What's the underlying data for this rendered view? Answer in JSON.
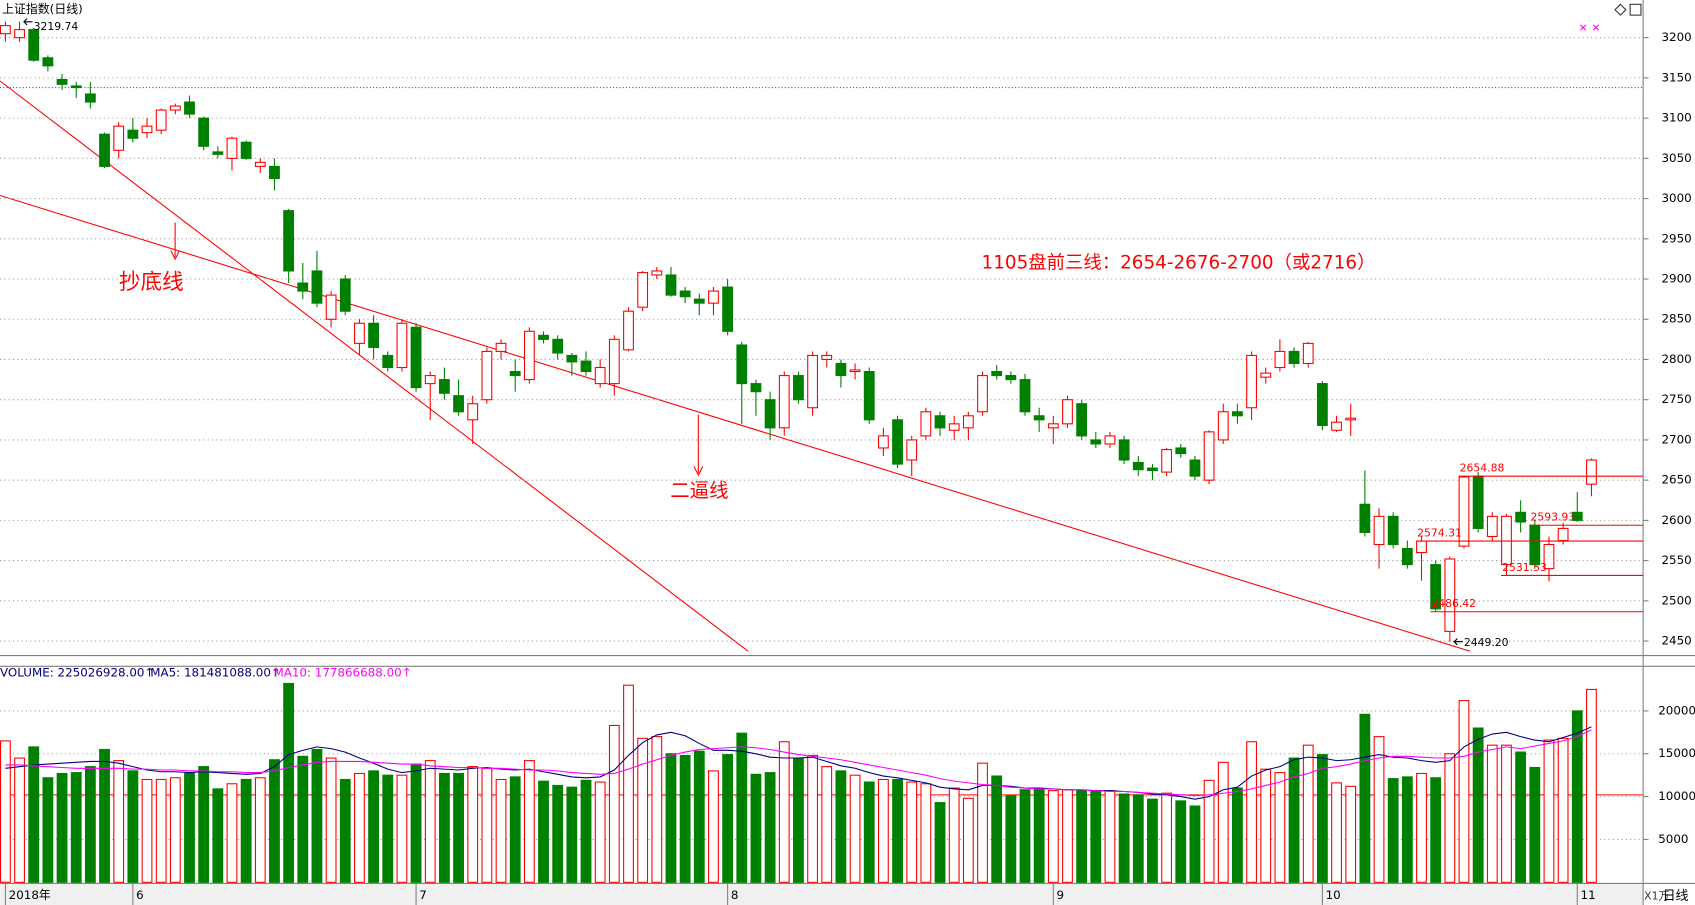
{
  "chart_data": [
    {
      "type": "candlestick",
      "title": "上证指数(日线)",
      "categories": [
        "2018年",
        null,
        null,
        null,
        null,
        null,
        null,
        null,
        null,
        "6",
        null,
        null,
        null,
        null,
        null,
        null,
        null,
        null,
        null,
        null,
        null,
        null,
        null,
        null,
        null,
        null,
        null,
        null,
        null,
        "7",
        null,
        null,
        null,
        null,
        null,
        null,
        null,
        null,
        null,
        null,
        null,
        null,
        null,
        null,
        null,
        null,
        null,
        null,
        null,
        null,
        null,
        "8",
        null,
        null,
        null,
        null,
        null,
        null,
        null,
        null,
        null,
        null,
        null,
        null,
        null,
        null,
        null,
        null,
        null,
        null,
        null,
        null,
        null,
        null,
        "9",
        null,
        null,
        null,
        null,
        null,
        null,
        null,
        null,
        null,
        null,
        null,
        null,
        null,
        null,
        null,
        null,
        null,
        null,
        "10",
        null,
        null,
        null,
        null,
        null,
        null,
        null,
        null,
        null,
        null,
        null,
        null,
        null,
        null,
        null,
        null,
        null,
        "11",
        null
      ],
      "open": [
        3205,
        3200,
        3210,
        3175,
        3148,
        3140,
        3130,
        3080,
        3060,
        3085,
        3082,
        3085,
        3110,
        3120,
        3100,
        3058,
        3050,
        3070,
        3040,
        3040,
        2985,
        2895,
        2910,
        2850,
        2900,
        2820,
        2845,
        2805,
        2790,
        2840,
        2770,
        2775,
        2755,
        2725,
        2750,
        2810,
        2785,
        2775,
        2830,
        2825,
        2805,
        2798,
        2770,
        2770,
        2812,
        2865,
        2905,
        2905,
        2885,
        2875,
        2870,
        2890,
        2818,
        2770,
        2750,
        2715,
        2780,
        2740,
        2800,
        2795,
        2785,
        2785,
        2690,
        2725,
        2675,
        2705,
        2730,
        2712,
        2715,
        2735,
        2785,
        2780,
        2775,
        2730,
        2715,
        2720,
        2745,
        2700,
        2695,
        2700,
        2672,
        2665,
        2660,
        2690,
        2675,
        2650,
        2700,
        2735,
        2740,
        2778,
        2790,
        2810,
        2795,
        2770,
        2712,
        2725,
        2620,
        2570,
        2605,
        2565,
        2560,
        2545,
        2462,
        2568,
        2655,
        2580,
        2545,
        2610,
        2593.93,
        2540,
        2575,
        2610,
        2645
      ],
      "high": [
        3220,
        3219.74,
        3212,
        3178,
        3155,
        3145,
        3145,
        3082,
        3095,
        3100,
        3100,
        3112,
        3118,
        3128,
        3102,
        3065,
        3077,
        3072,
        3050,
        3050,
        2987,
        2920,
        2935,
        2885,
        2905,
        2850,
        2855,
        2810,
        2850,
        2845,
        2785,
        2790,
        2775,
        2755,
        2815,
        2825,
        2800,
        2840,
        2835,
        2830,
        2808,
        2810,
        2800,
        2830,
        2865,
        2910,
        2915,
        2915,
        2890,
        2882,
        2890,
        2900,
        2822,
        2775,
        2760,
        2785,
        2785,
        2810,
        2810,
        2800,
        2795,
        2790,
        2715,
        2730,
        2705,
        2740,
        2735,
        2730,
        2735,
        2785,
        2793,
        2785,
        2782,
        2740,
        2730,
        2755,
        2750,
        2710,
        2710,
        2705,
        2680,
        2670,
        2690,
        2695,
        2680,
        2712,
        2745,
        2745,
        2810,
        2790,
        2825,
        2815,
        2822,
        2773,
        2730,
        2745,
        2662,
        2615,
        2610,
        2575,
        2580,
        2550,
        2555,
        2654.88,
        2660,
        2610,
        2608,
        2625,
        2600,
        2580,
        2597,
        2635,
        2677
      ],
      "low": [
        3195,
        3195,
        3170,
        3158,
        3135,
        3125,
        3112,
        3038,
        3050,
        3070,
        3075,
        3080,
        3105,
        3100,
        3060,
        3050,
        3035,
        3048,
        3032,
        3010,
        2895,
        2875,
        2865,
        2840,
        2855,
        2805,
        2800,
        2785,
        2785,
        2760,
        2725,
        2750,
        2730,
        2695,
        2745,
        2800,
        2760,
        2770,
        2820,
        2800,
        2780,
        2780,
        2765,
        2755,
        2810,
        2860,
        2900,
        2878,
        2870,
        2855,
        2855,
        2830,
        2720,
        2730,
        2700,
        2705,
        2745,
        2730,
        2790,
        2765,
        2775,
        2720,
        2680,
        2665,
        2655,
        2700,
        2705,
        2700,
        2700,
        2730,
        2775,
        2770,
        2730,
        2710,
        2695,
        2715,
        2700,
        2690,
        2690,
        2670,
        2655,
        2650,
        2655,
        2678,
        2650,
        2645,
        2695,
        2720,
        2725,
        2770,
        2785,
        2790,
        2790,
        2712,
        2710,
        2705,
        2580,
        2540,
        2565,
        2540,
        2525,
        2486.42,
        2449.2,
        2565,
        2585,
        2575,
        2531.53,
        2585,
        2540,
        2524,
        2570,
        2598,
        2630
      ],
      "close": [
        3215,
        3210,
        3172,
        3165,
        3142,
        3138,
        3120,
        3040,
        3090,
        3075,
        3090,
        3110,
        3115,
        3105,
        3065,
        3055,
        3075,
        3050,
        3045,
        3025,
        2910,
        2885,
        2870,
        2880,
        2860,
        2845,
        2815,
        2790,
        2845,
        2765,
        2780,
        2758,
        2735,
        2745,
        2810,
        2820,
        2780,
        2835,
        2825,
        2808,
        2797,
        2785,
        2790,
        2825,
        2860,
        2908,
        2910,
        2880,
        2878,
        2870,
        2885,
        2835,
        2770,
        2760,
        2715,
        2780,
        2750,
        2805,
        2805,
        2780,
        2787,
        2725,
        2705,
        2670,
        2700,
        2735,
        2715,
        2720,
        2730,
        2780,
        2780,
        2775,
        2735,
        2725,
        2720,
        2750,
        2705,
        2695,
        2705,
        2675,
        2663,
        2662,
        2688,
        2683,
        2655,
        2710,
        2735,
        2730,
        2805,
        2783,
        2810,
        2795,
        2820,
        2718,
        2722,
        2727,
        2585,
        2605,
        2570,
        2545,
        2574.31,
        2490,
        2552,
        2654,
        2590,
        2605,
        2605,
        2598,
        2545,
        2570,
        2590,
        2600,
        2675
      ],
      "up_color": "#ff0000",
      "down_color": "#008000",
      "ylim": [
        2432,
        3224
      ],
      "yticks": [
        2450,
        2500,
        2550,
        2600,
        2650,
        2700,
        2750,
        2800,
        2850,
        2900,
        2950,
        3000,
        3050,
        3100,
        3150,
        3200
      ],
      "grid": true,
      "reference_line": {
        "value": 3138,
        "color": "#3060c0"
      },
      "extremes": [
        3219.74,
        {
          "value": 2449.2,
          "label": "2449.20"
        }
      ],
      "levels": [
        2654.88,
        2593.93,
        2574.31,
        2531.53,
        2486.42
      ],
      "annotations": [
        "抄底线",
        "二逼线",
        "1105盘前三线：2654-2676-2700（或2716）"
      ]
    },
    {
      "type": "bar",
      "series": [
        {
          "name": "VOLUME: 225026928.00↑",
          "color": "#000080",
          "values": [
            16500,
            14500,
            15800,
            12200,
            12700,
            12800,
            13500,
            15500,
            14200,
            13000,
            12000,
            12000,
            12200,
            12700,
            13500,
            10900,
            11500,
            12000,
            12200,
            14300,
            23200,
            14700,
            15500,
            14500,
            12000,
            12700,
            13000,
            12500,
            12500,
            13800,
            14200,
            12700,
            12700,
            13500,
            13300,
            12000,
            12300,
            14200,
            11800,
            11300,
            11100,
            11900,
            11700,
            18300,
            23000,
            16800,
            17000,
            15000,
            14800,
            15300,
            13000,
            14900,
            17400,
            12600,
            12800,
            16400,
            14500,
            14800,
            13500,
            13000,
            12500,
            11700,
            12000,
            12000,
            11700,
            11500,
            9300,
            11000,
            9800,
            13900,
            12400,
            10100,
            10800,
            10900,
            10700,
            10800,
            10700,
            10700,
            10700,
            10300,
            10200,
            9700,
            10400,
            9500,
            8900,
            11900,
            14000,
            11000,
            16400,
            13200,
            12800,
            14500,
            16000,
            14900,
            11600,
            11200,
            19600,
            17000,
            12100,
            12300,
            12700,
            12200,
            15000,
            21200,
            18000,
            16000,
            16000,
            15200,
            13400,
            16600,
            16800,
            20000,
            22503
          ]
        },
        {
          "name": "MA5: 181481088.00↑",
          "color": "#000080",
          "values": [
            13300,
            13500,
            13700,
            13800,
            13900,
            14000,
            14100,
            14100,
            13900,
            13500,
            13100,
            12900,
            12900,
            12800,
            12900,
            12800,
            12700,
            12600,
            12700,
            13500,
            14900,
            15400,
            15800,
            15600,
            15200,
            14500,
            13900,
            13200,
            12800,
            13000,
            13300,
            13200,
            13100,
            13300,
            13400,
            13200,
            13100,
            13200,
            12900,
            12600,
            12300,
            12200,
            12300,
            13100,
            14800,
            16300,
            17200,
            17500,
            17100,
            16200,
            15400,
            15400,
            15300,
            15000,
            14600,
            14500,
            14500,
            14600,
            14100,
            13600,
            13300,
            12800,
            12400,
            12200,
            11900,
            11600,
            11100,
            10900,
            10800,
            11300,
            11300,
            11200,
            11000,
            11000,
            10900,
            10800,
            10800,
            10700,
            10700,
            10600,
            10500,
            10300,
            10200,
            10000,
            9700,
            10000,
            10800,
            11100,
            12400,
            13100,
            13500,
            14300,
            14600,
            14500,
            14200,
            14300,
            14600,
            14900,
            14600,
            14500,
            14200,
            14000,
            14200,
            15800,
            16700,
            17300,
            17500,
            17000,
            16600,
            16400,
            16900,
            17400,
            18148
          ]
        },
        {
          "name": "MA10: 177866688.00↑",
          "color": "#ff00ff",
          "values": [
            13700,
            13700,
            13600,
            13500,
            13400,
            13300,
            13300,
            13300,
            13300,
            13200,
            13200,
            13100,
            13100,
            13000,
            13000,
            12900,
            12900,
            12800,
            12800,
            13000,
            13400,
            13700,
            14000,
            14100,
            14100,
            14100,
            14000,
            13900,
            13800,
            13800,
            13600,
            13500,
            13400,
            13400,
            13300,
            13300,
            13200,
            13100,
            13100,
            13000,
            12800,
            12700,
            12600,
            12700,
            13200,
            13800,
            14300,
            14800,
            15200,
            15500,
            15600,
            15700,
            15800,
            15700,
            15500,
            15200,
            14900,
            14700,
            14500,
            14300,
            14000,
            13700,
            13400,
            13100,
            12800,
            12500,
            12100,
            11800,
            11600,
            11400,
            11300,
            11100,
            11000,
            10900,
            10900,
            10800,
            10800,
            10700,
            10600,
            10600,
            10500,
            10400,
            10300,
            10200,
            10100,
            10200,
            10400,
            10600,
            10900,
            11300,
            11700,
            12300,
            12700,
            13300,
            13500,
            13800,
            14200,
            14500,
            14700,
            14700,
            14600,
            14500,
            14500,
            14700,
            15200,
            15500,
            15800,
            15600,
            15900,
            16200,
            16500,
            17000,
            17787
          ]
        }
      ],
      "ylim": [
        0,
        25200
      ],
      "yticks": [
        5000,
        10000,
        15000,
        20000
      ],
      "reference_line": {
        "value": 10200,
        "color": "#ff0000"
      },
      "unit_label": "X1万",
      "period_label": "日线"
    }
  ]
}
